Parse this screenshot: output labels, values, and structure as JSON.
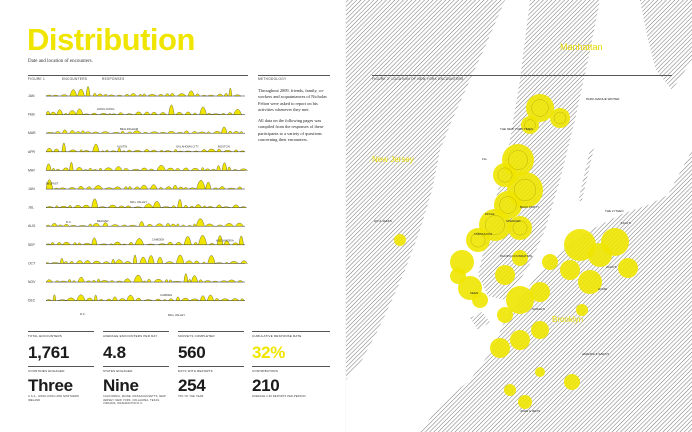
{
  "page": {
    "title": "Distribution",
    "subtitle": "Date and location of encounters."
  },
  "figure1": {
    "label": "Figure 1",
    "legend": [
      "Encounters",
      "Responses"
    ],
    "months": [
      "JAN",
      "FEB",
      "MAR",
      "APR",
      "MAY",
      "JUN",
      "JUL",
      "AUG",
      "SEP",
      "OCT",
      "NOV",
      "DEC"
    ],
    "annotations": [
      "HONG KONG",
      "BELLINGHAM",
      "AUSTIN",
      "OKLAHOMA CITY",
      "BOSTON",
      "BELFAST",
      "MILL VALLEY",
      "BELMAR",
      "D.C.",
      "CAMDEN",
      "ALEXANDRIA",
      "CAMDEN",
      "D.C.",
      "MILL VALLEY"
    ]
  },
  "methodology": {
    "label": "Methodology",
    "paragraphs": [
      "Throughout 2009, friends, family, co-workers and acquaintances of Nicholas Felton were asked to report on his activities whenever they met.",
      "All data on the following pages was compiled from the responses of these participants to a variety of questions concerning their encounters."
    ]
  },
  "stats": [
    {
      "label": "Total Encounters",
      "value": "1,761",
      "note": "",
      "highlight": false
    },
    {
      "label": "Average Encounters Per Day",
      "value": "4.8",
      "note": "",
      "highlight": false
    },
    {
      "label": "Surveys Completed",
      "value": "560",
      "note": "",
      "highlight": false
    },
    {
      "label": "Cumulative Response Rate",
      "value": "32%",
      "note": "",
      "highlight": true
    },
    {
      "label": "Countries Engaged",
      "value": "Three",
      "note": "U.S.A., Hong Kong and Northern Ireland",
      "highlight": false
    },
    {
      "label": "States Engaged",
      "value": "Nine",
      "note": "California, Maine, Massachusetts, New Jersey, New York, Oklahoma, Texas, Virginia, Washington D.C.",
      "highlight": false
    },
    {
      "label": "Days with Reports",
      "value": "254",
      "note": "70% of the year.",
      "highlight": false
    },
    {
      "label": "Contributors",
      "value": "210",
      "note": "Average 2.66 reports per person",
      "highlight": false
    }
  ],
  "figure2": {
    "label": "Figure 2: Location of New York Encounters",
    "regions": [
      "Manhattan",
      "New Jersey",
      "Brooklyn"
    ],
    "places": [
      "PARK AVENUE WINTER",
      "THE NEW YORK TIMES",
      "FLL",
      "BACK FORTY",
      "DFFLE",
      "SPENCER",
      "TABAKAOOS",
      "HO & JAZZ'S",
      "PACIFIC FOUNDATION",
      "KEEN",
      "SARAH'S",
      "THE LYTHEO",
      "JULIA'S",
      "ZACK'S",
      "HOME",
      "AMANDA & SARA'S",
      "JOHN & JEN'S"
    ]
  },
  "colors": {
    "accent": "#f0e500",
    "ink": "#1a1a1a",
    "water": "#ffffff",
    "land_hatch": "#3a3a3a"
  }
}
